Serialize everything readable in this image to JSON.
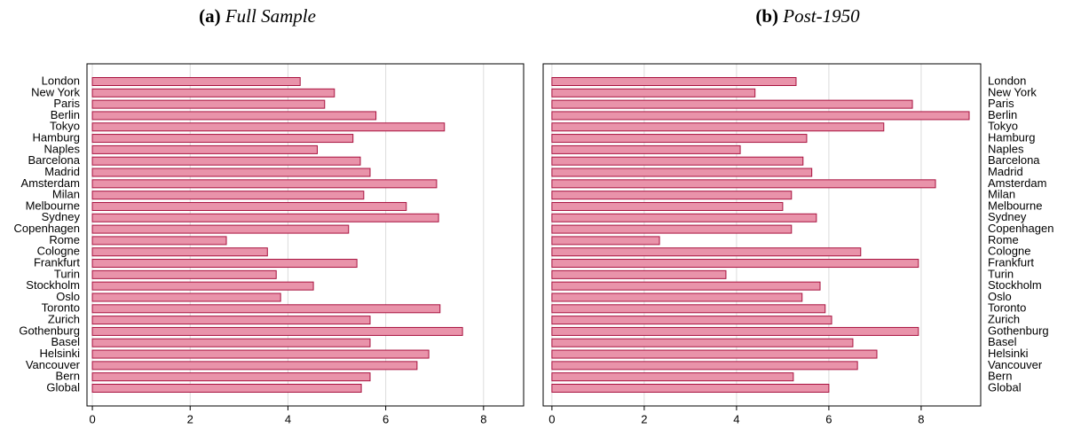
{
  "chart_data": [
    {
      "type": "barh",
      "label": "(a)",
      "title": "Full Sample",
      "categories": [
        "London",
        "New York",
        "Paris",
        "Berlin",
        "Tokyo",
        "Hamburg",
        "Naples",
        "Barcelona",
        "Madrid",
        "Amsterdam",
        "Milan",
        "Melbourne",
        "Sydney",
        "Copenhagen",
        "Rome",
        "Cologne",
        "Frankfurt",
        "Turin",
        "Stockholm",
        "Oslo",
        "Toronto",
        "Zurich",
        "Gothenburg",
        "Basel",
        "Helsinki",
        "Vancouver",
        "Bern",
        "Global"
      ],
      "values": [
        4.25,
        4.95,
        4.75,
        5.8,
        7.2,
        5.33,
        4.6,
        5.48,
        5.68,
        7.04,
        5.55,
        6.42,
        7.08,
        5.24,
        2.74,
        3.58,
        5.41,
        3.76,
        4.52,
        3.85,
        7.11,
        5.68,
        7.57,
        5.68,
        6.88,
        6.64,
        5.68,
        5.5
      ],
      "color": "#e993aa",
      "edgecolor": "#a8123f",
      "xlim": [
        -0.11,
        8.82
      ],
      "xticks": [
        0,
        2,
        4,
        6,
        8
      ],
      "grid": true,
      "ylabel_side": "left"
    },
    {
      "type": "barh",
      "label": "(b)",
      "title": "Post-1950",
      "categories": [
        "London",
        "New York",
        "Paris",
        "Berlin",
        "Tokyo",
        "Hamburg",
        "Naples",
        "Barcelona",
        "Madrid",
        "Amsterdam",
        "Milan",
        "Melbourne",
        "Sydney",
        "Copenhagen",
        "Rome",
        "Cologne",
        "Frankfurt",
        "Turin",
        "Stockholm",
        "Oslo",
        "Toronto",
        "Zurich",
        "Gothenburg",
        "Basel",
        "Helsinki",
        "Vancouver",
        "Bern",
        "Global"
      ],
      "values": [
        5.29,
        4.4,
        7.81,
        9.04,
        7.19,
        5.52,
        4.08,
        5.44,
        5.63,
        8.31,
        5.19,
        5.0,
        5.73,
        5.19,
        2.33,
        6.69,
        7.94,
        3.77,
        5.81,
        5.42,
        5.92,
        6.06,
        7.94,
        6.52,
        7.04,
        6.62,
        5.23,
        6.0
      ],
      "color": "#e993aa",
      "edgecolor": "#a8123f",
      "xlim": [
        -0.19,
        9.29
      ],
      "xticks": [
        0,
        2,
        4,
        6,
        8
      ],
      "grid": true,
      "ylabel_side": "right"
    }
  ]
}
